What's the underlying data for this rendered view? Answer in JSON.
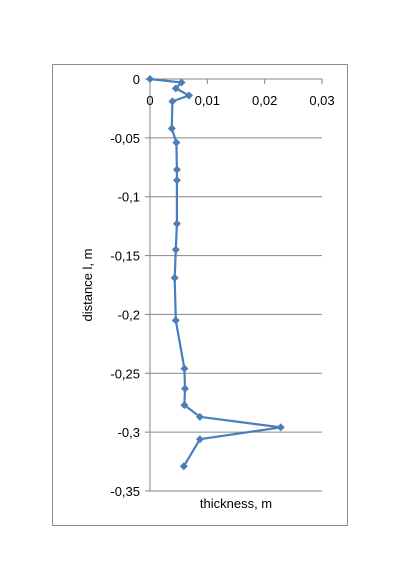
{
  "chart_data": {
    "type": "line",
    "xlabel": "thickness, m",
    "ylabel": "distance l, m",
    "xlim": [
      0,
      0.03
    ],
    "ylim": [
      -0.35,
      0
    ],
    "x_ticks": [
      0,
      0.01,
      0.02,
      0.03
    ],
    "x_tick_labels": [
      "0",
      "0,01",
      "0,02",
      "0,03"
    ],
    "y_ticks": [
      0,
      -0.05,
      -0.1,
      -0.15,
      -0.2,
      -0.25,
      -0.3,
      -0.35
    ],
    "y_tick_labels": [
      "0",
      "-0,05",
      "-0,1",
      "-0,15",
      "-0,2",
      "-0,25",
      "-0,3",
      "-0,35"
    ],
    "grid": "horizontal",
    "x_axis_position": "top",
    "series": [
      {
        "color": "#4a7ebb",
        "marker": "diamond",
        "points": [
          {
            "x": 0.0,
            "y": 0.0
          },
          {
            "x": 0.0055,
            "y": -0.003
          },
          {
            "x": 0.0045,
            "y": -0.008
          },
          {
            "x": 0.0068,
            "y": -0.014
          },
          {
            "x": 0.0039,
            "y": -0.019
          },
          {
            "x": 0.0038,
            "y": -0.042
          },
          {
            "x": 0.0046,
            "y": -0.054
          },
          {
            "x": 0.0047,
            "y": -0.077
          },
          {
            "x": 0.0047,
            "y": -0.086
          },
          {
            "x": 0.0047,
            "y": -0.123
          },
          {
            "x": 0.0045,
            "y": -0.145
          },
          {
            "x": 0.0043,
            "y": -0.169
          },
          {
            "x": 0.0045,
            "y": -0.205
          },
          {
            "x": 0.006,
            "y": -0.246
          },
          {
            "x": 0.0061,
            "y": -0.263
          },
          {
            "x": 0.006,
            "y": -0.277
          },
          {
            "x": 0.0087,
            "y": -0.287
          },
          {
            "x": 0.0228,
            "y": -0.296
          },
          {
            "x": 0.0087,
            "y": -0.306
          },
          {
            "x": 0.0059,
            "y": -0.329
          }
        ]
      }
    ]
  }
}
